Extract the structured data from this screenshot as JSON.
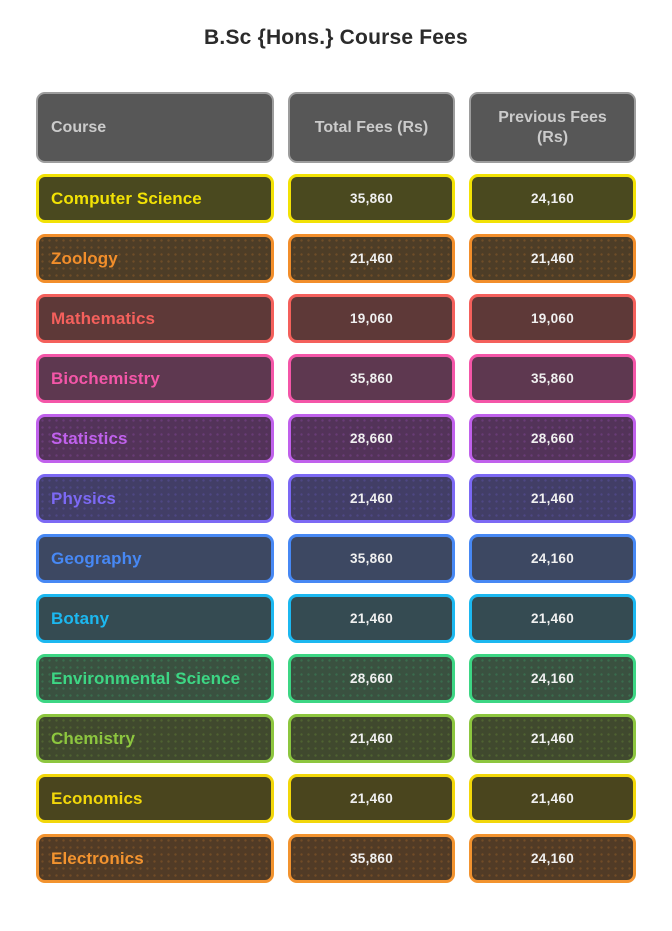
{
  "title": "B.Sc {Hons.} Course Fees",
  "header": {
    "course": "Course",
    "total": "Total Fees (Rs)",
    "previous": "Previous Fees (Rs)"
  },
  "rows": [
    {
      "course": "Computer Science",
      "total": "35,860",
      "previous": "24,160",
      "accent": "#F2E205",
      "bg": "#4A491F",
      "dotted": false
    },
    {
      "course": "Zoology",
      "total": "21,460",
      "previous": "21,460",
      "accent": "#F28E2B",
      "bg": "#4D3D27",
      "dotted": true
    },
    {
      "course": "Mathematics",
      "total": "19,060",
      "previous": "19,060",
      "accent": "#F4605C",
      "bg": "#5E3938",
      "dotted": false
    },
    {
      "course": "Biochemistry",
      "total": "35,860",
      "previous": "35,860",
      "accent": "#F456A8",
      "bg": "#5E3850",
      "dotted": false
    },
    {
      "course": "Statistics",
      "total": "28,660",
      "previous": "28,660",
      "accent": "#C061EC",
      "bg": "#533359",
      "dotted": true
    },
    {
      "course": "Physics",
      "total": "21,460",
      "previous": "21,460",
      "accent": "#7C69F4",
      "bg": "#423E66",
      "dotted": true
    },
    {
      "course": "Geography",
      "total": "35,860",
      "previous": "24,160",
      "accent": "#4788F4",
      "bg": "#3D4862",
      "dotted": false
    },
    {
      "course": "Botany",
      "total": "21,460",
      "previous": "21,460",
      "accent": "#1CB8F0",
      "bg": "#354B52",
      "dotted": false
    },
    {
      "course": "Environmental Science",
      "total": "28,660",
      "previous": "24,160",
      "accent": "#3DD684",
      "bg": "#3A5140",
      "dotted": true
    },
    {
      "course": "Chemistry",
      "total": "21,460",
      "previous": "21,460",
      "accent": "#8DC63F",
      "bg": "#40492E",
      "dotted": true
    },
    {
      "course": "Economics",
      "total": "21,460",
      "previous": "21,460",
      "accent": "#F2D70A",
      "bg": "#4A451E",
      "dotted": false
    },
    {
      "course": "Electronics",
      "total": "35,860",
      "previous": "24,160",
      "accent": "#F2932F",
      "bg": "#513B26",
      "dotted": true
    }
  ],
  "colors": {
    "header_bg": "#575757",
    "header_border": "#9D9D9D",
    "header_text": "#CBCBCB",
    "fee_text": "#F0F0F0",
    "title_text": "#2B2B2B",
    "page_bg": "#FFFFFF"
  },
  "chart_data": {
    "type": "table",
    "title": "B.Sc {Hons.} Course Fees",
    "columns": [
      "Course",
      "Total Fees (Rs)",
      "Previous Fees (Rs)"
    ],
    "rows": [
      [
        "Computer Science",
        "35,860",
        "24,160"
      ],
      [
        "Zoology",
        "21,460",
        "21,460"
      ],
      [
        "Mathematics",
        "19,060",
        "19,060"
      ],
      [
        "Biochemistry",
        "35,860",
        "35,860"
      ],
      [
        "Statistics",
        "28,660",
        "28,660"
      ],
      [
        "Physics",
        "21,460",
        "21,460"
      ],
      [
        "Geography",
        "35,860",
        "24,160"
      ],
      [
        "Botany",
        "21,460",
        "21,460"
      ],
      [
        "Environmental Science",
        "28,660",
        "24,160"
      ],
      [
        "Chemistry",
        "21,460",
        "21,460"
      ],
      [
        "Economics",
        "21,460",
        "21,460"
      ],
      [
        "Electronics",
        "35,860",
        "24,160"
      ]
    ]
  }
}
